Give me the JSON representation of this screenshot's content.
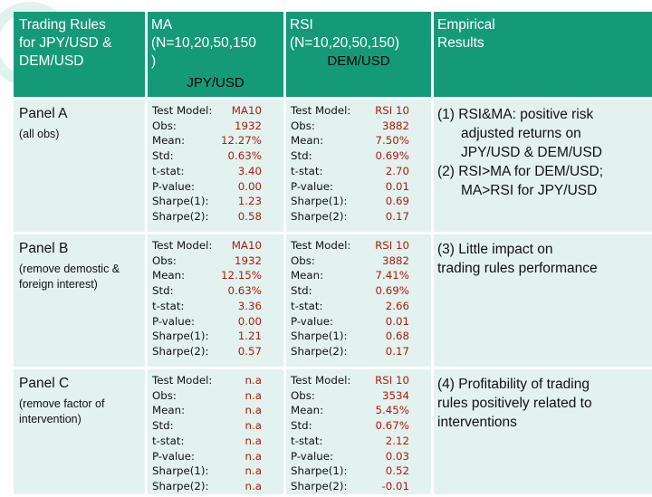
{
  "header": {
    "col0": [
      "Trading Rules",
      "for JPY/USD &",
      "DEM/USD"
    ],
    "ma_title": [
      "MA",
      "(N=10,20,50,150",
      ")"
    ],
    "ma_currency": "JPY/USD",
    "rsi_title": [
      "RSI",
      "(N=10,20,50,150)"
    ],
    "rsi_currency": "DEM/USD",
    "empirical": [
      "Empirical",
      "Results"
    ]
  },
  "stat_labels": [
    "Test Model:",
    "Obs:",
    "Mean:",
    "Std:",
    "t-stat:",
    "P-value:",
    "Sharpe(1):",
    "Sharpe(2):"
  ],
  "panels": [
    {
      "name": "Panel A",
      "sub": "(all obs)",
      "ma": [
        "MA10",
        "1932",
        "12.27%",
        "0.63%",
        "3.40",
        "0.00",
        "1.23",
        "0.58"
      ],
      "rsi": [
        "RSI 10",
        "3882",
        "7.50%",
        "0.69%",
        "2.70",
        "0.01",
        "0.69",
        "0.17"
      ],
      "empirical": [
        "(1) RSI&MA: positive risk",
        "adjusted returns on",
        "JPY/USD & DEM/USD",
        "(2) RSI>MA for DEM/USD;",
        "MA>RSI for JPY/USD"
      ]
    },
    {
      "name": "Panel B",
      "sub": "(remove demostic & foreign interest)",
      "ma": [
        "MA10",
        "1932",
        "12.15%",
        "0.63%",
        "3.36",
        "0.00",
        "1.21",
        "0.57"
      ],
      "rsi": [
        "RSI 10",
        "3882",
        "7.41%",
        "0.69%",
        "2.66",
        "0.01",
        "0.68",
        "0.17"
      ],
      "empirical": [
        "(3) Little impact on",
        "trading rules performance"
      ]
    },
    {
      "name": "Panel C",
      "sub": "(remove factor of intervention)",
      "ma": [
        "n.a",
        "n.a",
        "n.a",
        "n.a",
        "n.a",
        "n.a",
        "n.a",
        "n.a"
      ],
      "rsi": [
        "RSI 10",
        "3534",
        "5.45%",
        "0.67%",
        "2.12",
        "0.03",
        "0.52",
        "-0.01"
      ],
      "empirical": [
        "(4) Profitability of trading",
        "rules positively related to",
        "interventions"
      ]
    }
  ],
  "colors": {
    "header_bg": "#159a79",
    "body_bg": "#e3f2ef",
    "value_red": "#aa1c0f"
  }
}
